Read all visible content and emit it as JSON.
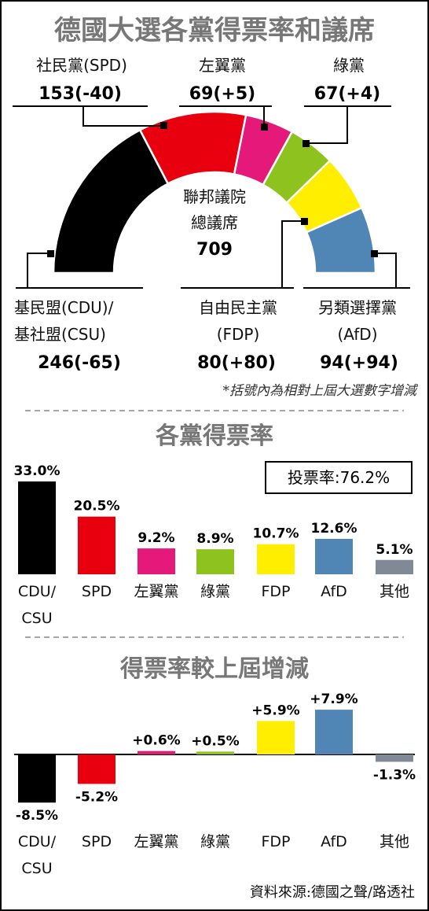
{
  "title": "德國大選各黨得票率和議席",
  "seat_chart": {
    "center_label_1": "聯邦議院",
    "center_label_2": "總議席",
    "total_seats": "709",
    "parties": [
      {
        "key": "cdu",
        "name_1": "基民盟(CDU)/",
        "name_2": "基社盟(CSU)",
        "seats_text": "246(-65)",
        "seats": 246,
        "color": "#000000"
      },
      {
        "key": "spd",
        "name_1": "社民黨(SPD)",
        "seats_text": "153(-40)",
        "seats": 153,
        "color": "#e8000f"
      },
      {
        "key": "left",
        "name_1": "左翼黨",
        "seats_text": "69(+5)",
        "seats": 69,
        "color": "#e5197a"
      },
      {
        "key": "green",
        "name_1": "綠黨",
        "seats_text": "67(+4)",
        "seats": 67,
        "color": "#8dc21f"
      },
      {
        "key": "fdp",
        "name_1": "自由民主黨",
        "name_2": "(FDP)",
        "seats_text": "80(+80)",
        "seats": 80,
        "color": "#ffee00"
      },
      {
        "key": "afd",
        "name_1": "另類選擇黨",
        "name_2": "(AfD)",
        "seats_text": "94(+94)",
        "seats": 94,
        "color": "#4f86b5"
      }
    ],
    "note": "*括號內為相對上屆大選數字增減"
  },
  "section2_title": "各黨得票率",
  "turnout_label": "投票率:76.2%",
  "section3_title": "得票率較上屆增減",
  "source": "資料來源:德國之聲/路透社",
  "chart_data": [
    {
      "type": "bar",
      "title": "各黨得票率",
      "categories": [
        "CDU/CSU",
        "SPD",
        "左翼黨",
        "綠黨",
        "FDP",
        "AfD",
        "其他"
      ],
      "cat_lines": [
        [
          "CDU/",
          "CSU"
        ],
        [
          "SPD"
        ],
        [
          "左翼黨"
        ],
        [
          "綠黨"
        ],
        [
          "FDP"
        ],
        [
          "AfD"
        ],
        [
          "其他"
        ]
      ],
      "values": [
        33.0,
        20.5,
        9.2,
        8.9,
        10.7,
        12.6,
        5.1
      ],
      "labels": [
        "33.0%",
        "20.5%",
        "9.2%",
        "8.9%",
        "10.7%",
        "12.6%",
        "5.1%"
      ],
      "colors": [
        "#000000",
        "#e8000f",
        "#e5197a",
        "#8dc21f",
        "#ffee00",
        "#4f86b5",
        "#7f8a96"
      ],
      "ylim": [
        0,
        33.0
      ]
    },
    {
      "type": "bar",
      "title": "得票率較上屆增減",
      "categories": [
        "CDU/CSU",
        "SPD",
        "左翼黨",
        "綠黨",
        "FDP",
        "AfD",
        "其他"
      ],
      "cat_lines": [
        [
          "CDU/",
          "CSU"
        ],
        [
          "SPD"
        ],
        [
          "左翼黨"
        ],
        [
          "綠黨"
        ],
        [
          "FDP"
        ],
        [
          "AfD"
        ],
        [
          "其他"
        ]
      ],
      "values": [
        -8.5,
        -5.2,
        0.6,
        0.5,
        5.9,
        7.9,
        -1.3
      ],
      "labels": [
        "-8.5%",
        "-5.2%",
        "+0.6%",
        "+0.5%",
        "+5.9%",
        "+7.9%",
        "-1.3%"
      ],
      "colors": [
        "#000000",
        "#e8000f",
        "#e5197a",
        "#8dc21f",
        "#ffee00",
        "#4f86b5",
        "#7f8a96"
      ],
      "ylim": [
        -8.5,
        7.9
      ]
    }
  ]
}
